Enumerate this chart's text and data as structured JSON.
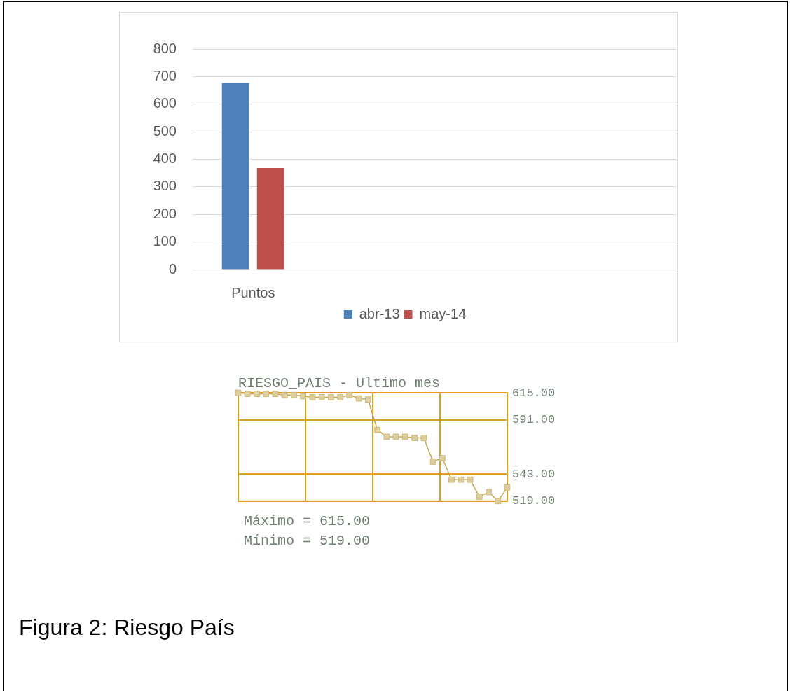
{
  "chart_data": [
    {
      "type": "bar",
      "categories": [
        "Puntos",
        null,
        null,
        null
      ],
      "series": [
        {
          "name": "abr-13",
          "color": "#4f81bd",
          "values": [
            677,
            null,
            null,
            null
          ]
        },
        {
          "name": "may-14",
          "color": "#c0504d",
          "values": [
            368,
            null,
            null,
            null
          ]
        }
      ],
      "ylim": [
        0,
        800
      ],
      "yticks": [
        0,
        100,
        200,
        300,
        400,
        500,
        600,
        700,
        800
      ],
      "grid": "y",
      "legend": "bottom"
    },
    {
      "type": "line",
      "title": "RIESGO_PAIS - Ultimo mes",
      "categories": [
        null,
        null,
        null,
        null,
        null,
        null,
        null,
        null,
        null,
        null,
        null,
        null,
        null,
        null,
        null,
        null,
        null,
        null,
        null,
        null,
        null,
        null,
        null,
        null,
        null,
        null,
        null,
        null,
        null,
        null
      ],
      "series": [
        {
          "color": "#c2a651",
          "values": [
            615,
            614,
            614,
            614,
            614,
            613,
            613,
            612,
            611,
            611,
            611,
            611,
            613,
            610,
            609,
            582,
            576,
            576,
            576,
            575,
            575,
            554,
            557,
            538,
            538,
            538,
            523,
            527,
            519,
            531
          ]
        }
      ],
      "ylim": [
        519,
        615
      ],
      "yticks": [
        {
          "value": 615,
          "label": "615.00"
        },
        {
          "value": 591,
          "label": "591.00"
        },
        {
          "value": 543,
          "label": "543.00"
        },
        {
          "value": 519,
          "label": "519.00"
        }
      ],
      "grid": true,
      "marker": "square",
      "annotations": [
        "Máximo = 615.00",
        "Mínimo = 519.00"
      ]
    },
    {
      "type": "other",
      "annotations": [
        "Figura 2: Riesgo País"
      ]
    }
  ]
}
